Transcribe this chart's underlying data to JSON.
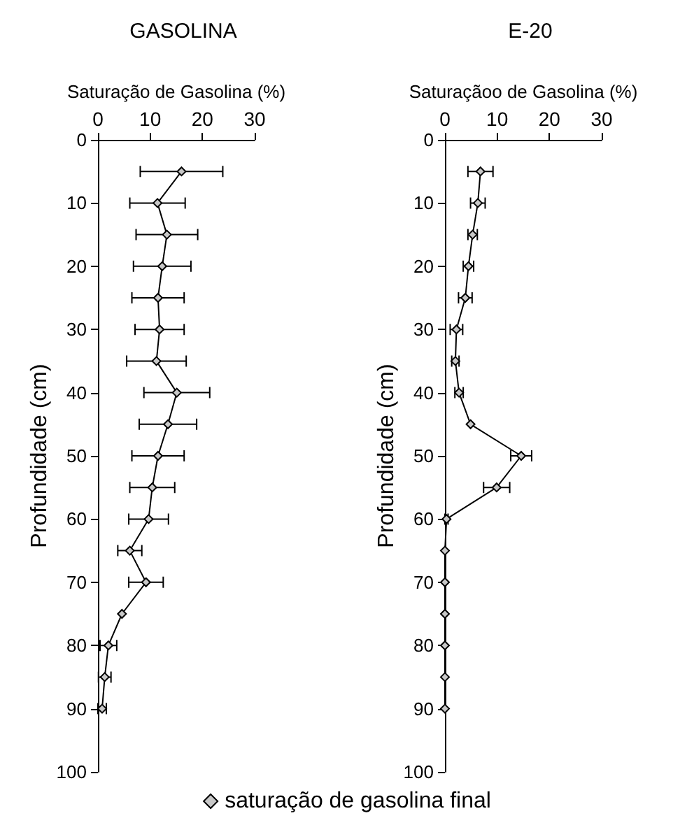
{
  "chart_data": [
    {
      "type": "line",
      "title": "GASOLINA",
      "xlabel": "Saturação de Gasolina (%)",
      "ylabel": "Profundidade (cm)",
      "xlim": [
        0,
        30
      ],
      "xticks": [
        0,
        10,
        20,
        30
      ],
      "ylim": [
        100,
        0
      ],
      "yticks": [
        0,
        10,
        20,
        30,
        40,
        50,
        60,
        70,
        80,
        90,
        100
      ],
      "grid": false,
      "legend": "bottom",
      "marker": "diamond",
      "line_style": "solid",
      "series": [
        {
          "name": "saturação de gasolina final",
          "color": "#000000",
          "x": [
            16.0,
            11.4,
            13.2,
            12.3,
            11.5,
            11.8,
            11.2,
            15.1,
            13.4,
            11.5,
            10.4,
            9.7,
            6.1,
            9.2,
            4.6,
            2.0,
            1.3,
            0.8
          ],
          "values": [
            5,
            10,
            15,
            20,
            25,
            30,
            35,
            40,
            45,
            50,
            55,
            60,
            65,
            70,
            75,
            80,
            85,
            90
          ],
          "xerrors": [
            7.9,
            5.3,
            5.9,
            5.5,
            5.0,
            4.7,
            5.7,
            6.3,
            5.5,
            5.0,
            4.3,
            3.8,
            2.3,
            3.3,
            null,
            1.6,
            1.2,
            0.8
          ]
        }
      ]
    },
    {
      "type": "line",
      "title": "E-20",
      "xlabel": "Saturaçãoo de Gasolina (%)",
      "ylabel": "Profundidade (cm)",
      "xlim": [
        0,
        30
      ],
      "xticks": [
        0,
        10,
        20,
        30
      ],
      "ylim": [
        100,
        0
      ],
      "yticks": [
        0,
        10,
        20,
        30,
        40,
        50,
        60,
        70,
        80,
        90,
        100
      ],
      "grid": false,
      "marker": "diamond",
      "line_style": "solid",
      "series": [
        {
          "color": "#000000",
          "x": [
            6.8,
            6.3,
            5.3,
            4.5,
            3.9,
            2.2,
            2.0,
            2.7,
            4.9,
            14.6,
            9.9,
            0.3,
            0,
            0,
            0,
            0,
            0,
            0
          ],
          "values": [
            5,
            10,
            15,
            20,
            25,
            30,
            35,
            40,
            45,
            50,
            55,
            60,
            65,
            70,
            75,
            80,
            85,
            90
          ],
          "xerrors": [
            2.4,
            1.4,
            0.9,
            1.0,
            1.3,
            1.2,
            0.7,
            0.8,
            null,
            2.0,
            2.5,
            0.3,
            null,
            null,
            null,
            null,
            null,
            null
          ]
        }
      ]
    }
  ]
}
